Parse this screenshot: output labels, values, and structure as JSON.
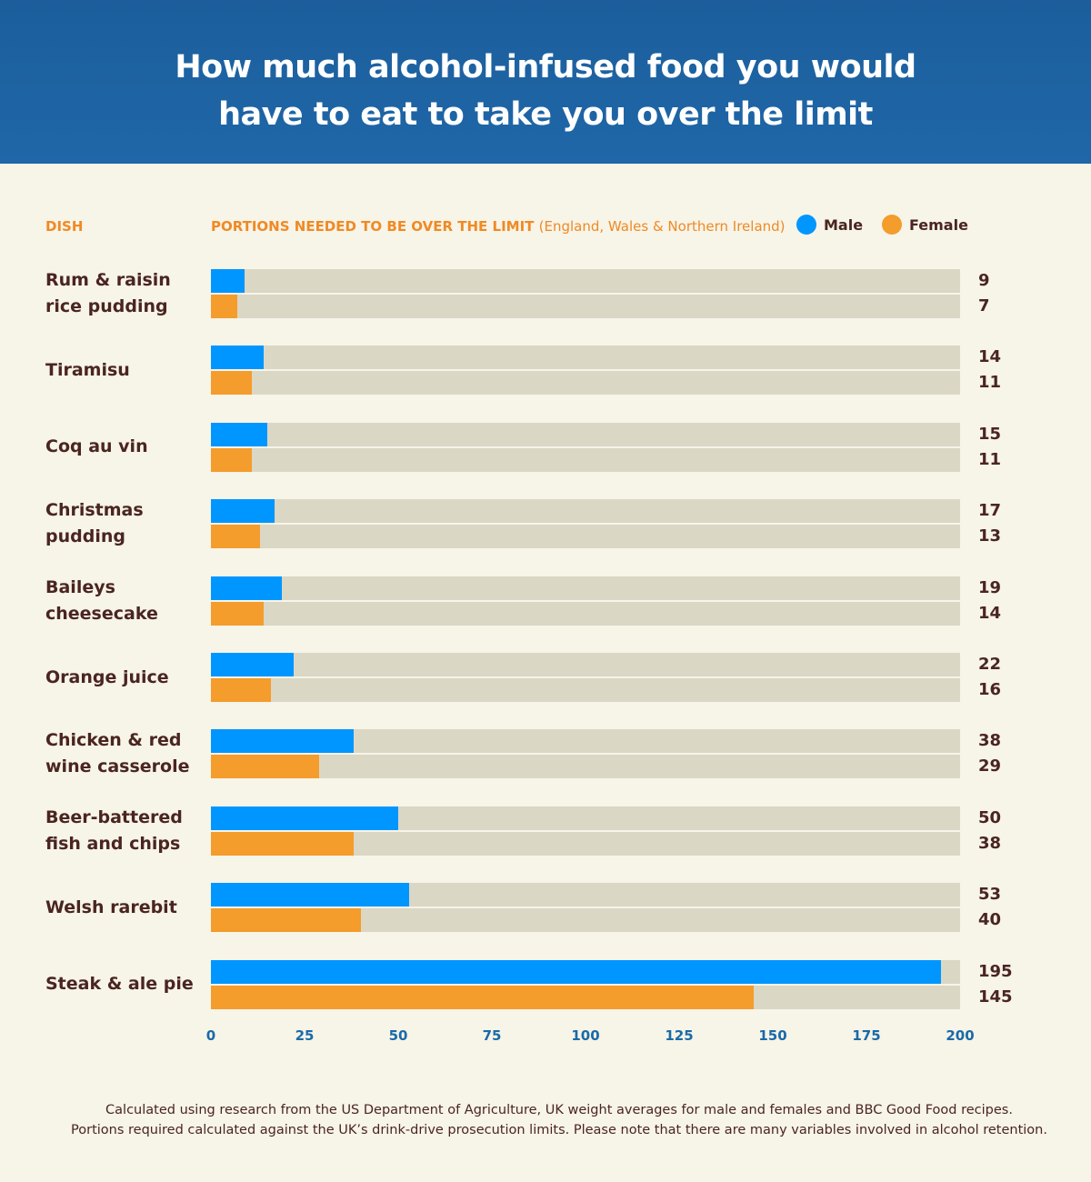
{
  "title_line1": "How much alcohol-infused food you would",
  "title_line2": "have to eat to take you over the limit",
  "dish_header": "DISH",
  "portions_header": "PORTIONS NEEDED TO BE OVER THE LIMIT",
  "portions_subheader": "(England, Wales & Northern Ireland)",
  "footnote_line1": "Calculated using research from the US Department of Agriculture, UK weight averages for male and females and BBC Good Food recipes.",
  "footnote_line2": "Portions required calculated against the UK’s drink-drive prosecution limits. Please note that there are many variables involved in alcohol retention.",
  "chart_data": {
    "type": "bar",
    "orientation": "horizontal",
    "title": "How much alcohol-infused food you would have to eat to take you over the limit",
    "xlabel": "PORTIONS NEEDED TO BE OVER THE LIMIT (England, Wales & Northern Ireland)",
    "ylabel": "DISH",
    "xlim": [
      0,
      200
    ],
    "ticks": [
      "0",
      "25",
      "50",
      "75",
      "100",
      "125",
      "150",
      "175",
      "200"
    ],
    "legend_position": "top-right",
    "grid": false,
    "categories": [
      [
        "Rum & raisin",
        "rice pudding"
      ],
      [
        "Tiramisu"
      ],
      [
        "Coq au vin"
      ],
      [
        "Christmas",
        "pudding"
      ],
      [
        "Baileys",
        "cheesecake"
      ],
      [
        "Orange juice"
      ],
      [
        "Chicken & red",
        "wine casserole"
      ],
      [
        "Beer-battered",
        "fish and chips"
      ],
      [
        "Welsh rarebit"
      ],
      [
        "Steak & ale pie"
      ]
    ],
    "series": [
      {
        "name": "Male",
        "color": "#0096ff",
        "values": [
          9,
          14,
          15,
          17,
          19,
          22,
          38,
          50,
          53,
          195
        ]
      },
      {
        "name": "Female",
        "color": "#f49c2c",
        "values": [
          7,
          11,
          11,
          13,
          14,
          16,
          29,
          38,
          40,
          145
        ]
      }
    ]
  }
}
